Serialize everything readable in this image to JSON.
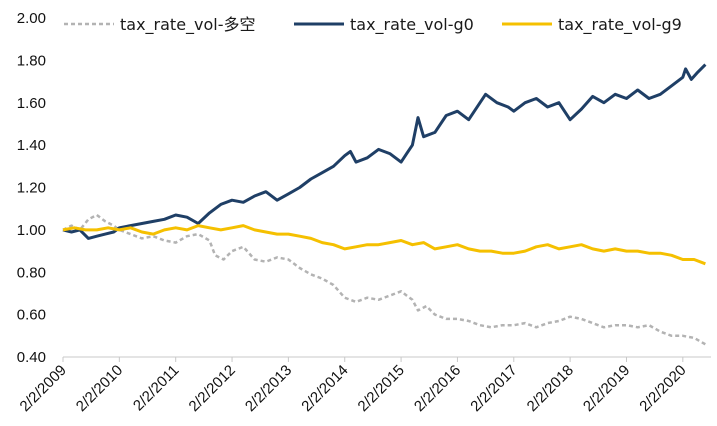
{
  "chart_data": {
    "type": "line",
    "title": "",
    "xlabel": "",
    "ylabel": "",
    "ylim": [
      0.4,
      2.0
    ],
    "y_ticks": [
      "0.40",
      "0.60",
      "0.80",
      "1.00",
      "1.20",
      "1.40",
      "1.60",
      "1.80",
      "2.00"
    ],
    "x_ticks": [
      "2/2/2009",
      "2/2/2010",
      "2/2/2011",
      "2/2/2012",
      "2/2/2013",
      "2/2/2014",
      "2/2/2015",
      "2/2/2016",
      "2/2/2017",
      "2/2/2018",
      "2/2/2019",
      "2/2/2020"
    ],
    "xlim": [
      2009.0,
      2020.5
    ],
    "grid": false,
    "legend_position": "top",
    "series": [
      {
        "name": "tax_rate_vol-多空",
        "color": "#b3b3b3",
        "dash": "dashed",
        "x": [
          2009.0,
          2009.15,
          2009.3,
          2009.45,
          2009.6,
          2009.75,
          2009.9,
          2010.0,
          2010.2,
          2010.4,
          2010.6,
          2010.8,
          2011.0,
          2011.2,
          2011.4,
          2011.6,
          2011.7,
          2011.85,
          2012.0,
          2012.2,
          2012.4,
          2012.6,
          2012.8,
          2013.0,
          2013.2,
          2013.4,
          2013.6,
          2013.8,
          2014.0,
          2014.2,
          2014.4,
          2014.6,
          2014.8,
          2015.0,
          2015.1,
          2015.2,
          2015.3,
          2015.45,
          2015.6,
          2015.8,
          2016.0,
          2016.2,
          2016.4,
          2016.6,
          2016.8,
          2017.0,
          2017.2,
          2017.4,
          2017.6,
          2017.8,
          2018.0,
          2018.2,
          2018.4,
          2018.6,
          2018.8,
          2019.0,
          2019.2,
          2019.4,
          2019.6,
          2019.8,
          2020.0,
          2020.2,
          2020.4
        ],
        "values": [
          1.0,
          1.02,
          1.0,
          1.05,
          1.07,
          1.04,
          1.02,
          1.0,
          0.98,
          0.96,
          0.97,
          0.95,
          0.94,
          0.97,
          0.98,
          0.95,
          0.88,
          0.86,
          0.9,
          0.92,
          0.86,
          0.85,
          0.87,
          0.86,
          0.82,
          0.79,
          0.77,
          0.74,
          0.68,
          0.66,
          0.68,
          0.67,
          0.69,
          0.71,
          0.69,
          0.67,
          0.62,
          0.64,
          0.6,
          0.58,
          0.58,
          0.57,
          0.55,
          0.54,
          0.55,
          0.55,
          0.56,
          0.54,
          0.56,
          0.57,
          0.59,
          0.58,
          0.56,
          0.54,
          0.55,
          0.55,
          0.54,
          0.55,
          0.52,
          0.5,
          0.5,
          0.49,
          0.46
        ]
      },
      {
        "name": "tax_rate_vol-g0",
        "color": "#1f3f66",
        "dash": "solid",
        "x": [
          2009.0,
          2009.15,
          2009.3,
          2009.45,
          2009.6,
          2009.75,
          2009.9,
          2010.0,
          2010.2,
          2010.4,
          2010.6,
          2010.8,
          2011.0,
          2011.2,
          2011.4,
          2011.6,
          2011.8,
          2012.0,
          2012.2,
          2012.4,
          2012.6,
          2012.8,
          2013.0,
          2013.2,
          2013.4,
          2013.6,
          2013.8,
          2014.0,
          2014.1,
          2014.2,
          2014.4,
          2014.6,
          2014.8,
          2015.0,
          2015.1,
          2015.2,
          2015.3,
          2015.4,
          2015.6,
          2015.8,
          2016.0,
          2016.2,
          2016.4,
          2016.5,
          2016.7,
          2016.9,
          2017.0,
          2017.2,
          2017.4,
          2017.6,
          2017.8,
          2017.9,
          2018.0,
          2018.2,
          2018.4,
          2018.6,
          2018.8,
          2019.0,
          2019.2,
          2019.4,
          2019.6,
          2019.8,
          2020.0,
          2020.05,
          2020.15,
          2020.25,
          2020.4
        ],
        "values": [
          1.0,
          0.99,
          1.0,
          0.96,
          0.97,
          0.98,
          0.99,
          1.01,
          1.02,
          1.03,
          1.04,
          1.05,
          1.07,
          1.06,
          1.03,
          1.08,
          1.12,
          1.14,
          1.13,
          1.16,
          1.18,
          1.14,
          1.17,
          1.2,
          1.24,
          1.27,
          1.3,
          1.35,
          1.37,
          1.32,
          1.34,
          1.38,
          1.36,
          1.32,
          1.36,
          1.4,
          1.53,
          1.44,
          1.46,
          1.54,
          1.56,
          1.52,
          1.6,
          1.64,
          1.6,
          1.58,
          1.56,
          1.6,
          1.62,
          1.58,
          1.6,
          1.56,
          1.52,
          1.57,
          1.63,
          1.6,
          1.64,
          1.62,
          1.66,
          1.62,
          1.64,
          1.68,
          1.72,
          1.76,
          1.71,
          1.74,
          1.78
        ]
      },
      {
        "name": "tax_rate_vol-g9",
        "color": "#f5c000",
        "dash": "solid",
        "x": [
          2009.0,
          2009.2,
          2009.4,
          2009.6,
          2009.8,
          2010.0,
          2010.2,
          2010.4,
          2010.6,
          2010.8,
          2011.0,
          2011.2,
          2011.4,
          2011.6,
          2011.8,
          2012.0,
          2012.2,
          2012.4,
          2012.6,
          2012.8,
          2013.0,
          2013.2,
          2013.4,
          2013.6,
          2013.8,
          2014.0,
          2014.2,
          2014.4,
          2014.6,
          2014.8,
          2015.0,
          2015.2,
          2015.4,
          2015.6,
          2015.8,
          2016.0,
          2016.2,
          2016.4,
          2016.6,
          2016.8,
          2017.0,
          2017.2,
          2017.4,
          2017.6,
          2017.8,
          2018.0,
          2018.2,
          2018.4,
          2018.6,
          2018.8,
          2019.0,
          2019.2,
          2019.4,
          2019.6,
          2019.8,
          2020.0,
          2020.2,
          2020.4
        ],
        "values": [
          1.0,
          1.01,
          1.0,
          1.0,
          1.01,
          1.0,
          1.01,
          0.99,
          0.98,
          1.0,
          1.01,
          1.0,
          1.02,
          1.01,
          1.0,
          1.01,
          1.02,
          1.0,
          0.99,
          0.98,
          0.98,
          0.97,
          0.96,
          0.94,
          0.93,
          0.91,
          0.92,
          0.93,
          0.93,
          0.94,
          0.95,
          0.93,
          0.94,
          0.91,
          0.92,
          0.93,
          0.91,
          0.9,
          0.9,
          0.89,
          0.89,
          0.9,
          0.92,
          0.93,
          0.91,
          0.92,
          0.93,
          0.91,
          0.9,
          0.91,
          0.9,
          0.9,
          0.89,
          0.89,
          0.88,
          0.86,
          0.86,
          0.84
        ]
      }
    ]
  }
}
